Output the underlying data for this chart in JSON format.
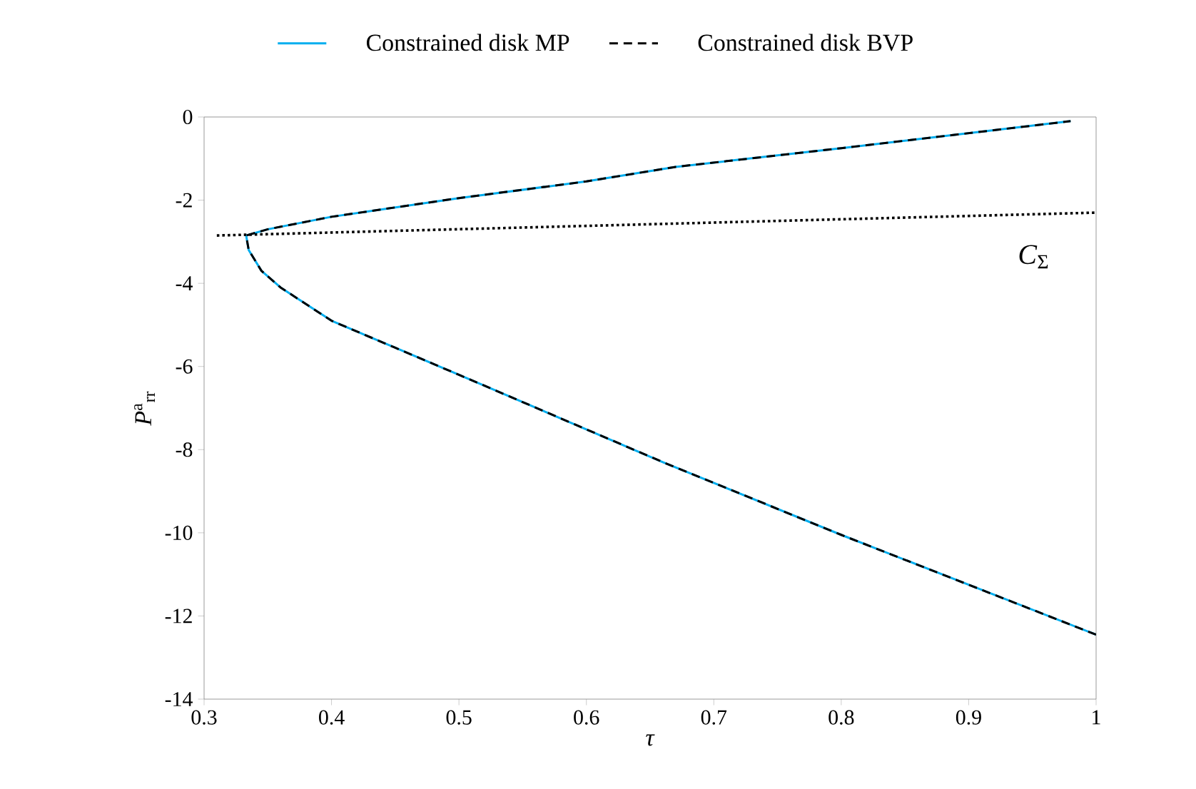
{
  "chart_data": {
    "type": "line",
    "xlabel": "*τ*",
    "ylabel": "*P*$^{a}$$_{rr}$",
    "xlim": [
      0.3,
      1
    ],
    "ylim": [
      -14,
      0
    ],
    "xticks": [
      0.3,
      0.4,
      0.5,
      0.6,
      0.7,
      0.8,
      0.9,
      1
    ],
    "yticks": [
      -14,
      -12,
      -10,
      -8,
      -6,
      -4,
      -2,
      0
    ],
    "legend": "top",
    "series": [
      {
        "name": "Constrained disk MP",
        "color": "#00aeef",
        "line_style": "solid",
        "x": [
          1.0,
          0.8,
          0.66,
          0.5,
          0.45,
          0.4,
          0.38,
          0.36,
          0.345,
          0.335,
          0.333,
          0.35,
          0.4,
          0.5,
          0.6,
          0.67,
          0.8,
          0.98
        ],
        "values": [
          -12.45,
          -10.05,
          -8.3,
          -6.2,
          -5.55,
          -4.9,
          -4.5,
          -4.1,
          -3.7,
          -3.2,
          -2.85,
          -2.7,
          -2.4,
          -1.95,
          -1.55,
          -1.2,
          -0.75,
          -0.1
        ]
      },
      {
        "name": "Constrained disk BVP",
        "color": "#000000",
        "line_style": "dashed",
        "x": [
          1.0,
          0.8,
          0.66,
          0.5,
          0.45,
          0.4,
          0.38,
          0.36,
          0.345,
          0.335,
          0.333,
          0.35,
          0.4,
          0.5,
          0.6,
          0.67,
          0.8,
          0.98
        ],
        "values": [
          -12.45,
          -10.05,
          -8.3,
          -6.2,
          -5.55,
          -4.9,
          -4.5,
          -4.1,
          -3.7,
          -3.2,
          -2.85,
          -2.7,
          -2.4,
          -1.95,
          -1.55,
          -1.2,
          -0.75,
          -0.1
        ]
      },
      {
        "color": "#000000",
        "line_style": "dotted",
        "x": [
          0.31,
          1.0
        ],
        "values": [
          -2.85,
          -2.3
        ]
      }
    ],
    "annotations": [
      "*C*$_{Σ}$"
    ]
  }
}
